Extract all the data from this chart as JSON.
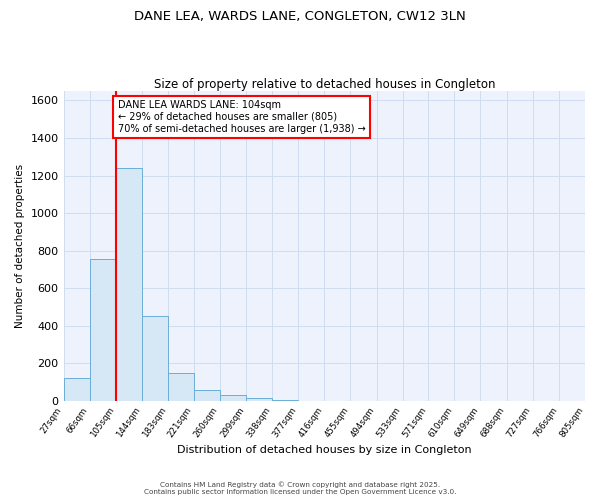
{
  "title1": "DANE LEA, WARDS LANE, CONGLETON, CW12 3LN",
  "title2": "Size of property relative to detached houses in Congleton",
  "xlabel": "Distribution of detached houses by size in Congleton",
  "ylabel": "Number of detached properties",
  "bin_edges": [
    27,
    66,
    105,
    144,
    183,
    221,
    260,
    299,
    338,
    377,
    416,
    455,
    494,
    533,
    571,
    610,
    649,
    688,
    727,
    766,
    805
  ],
  "bar_heights": [
    120,
    755,
    1240,
    450,
    150,
    60,
    30,
    15,
    2,
    0,
    0,
    0,
    0,
    0,
    0,
    0,
    0,
    0,
    0,
    0
  ],
  "bar_color": "#d6e8f5",
  "bar_edge_color": "#6aaed6",
  "grid_color": "#d0ddf0",
  "background_color": "#eef2fc",
  "red_line_x": 105,
  "annotation_text": "DANE LEA WARDS LANE: 104sqm\n← 29% of detached houses are smaller (805)\n70% of semi-detached houses are larger (1,938) →",
  "annotation_box_facecolor": "white",
  "annotation_edge_color": "red",
  "ylim": [
    0,
    1650
  ],
  "yticks": [
    0,
    200,
    400,
    600,
    800,
    1000,
    1200,
    1400,
    1600
  ],
  "footer1": "Contains HM Land Registry data © Crown copyright and database right 2025.",
  "footer2": "Contains public sector information licensed under the Open Government Licence v3.0."
}
